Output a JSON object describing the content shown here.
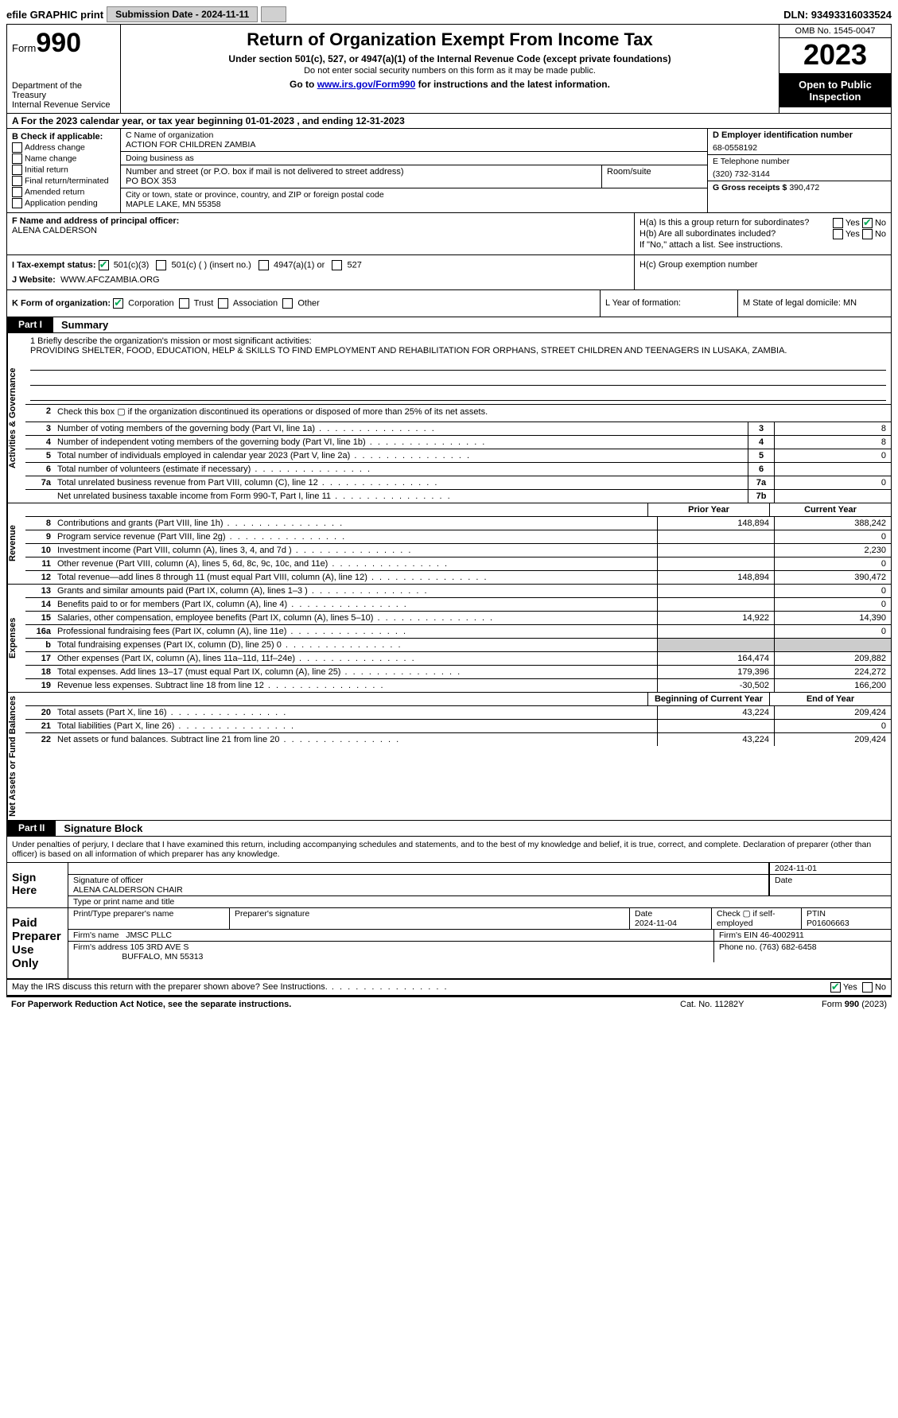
{
  "topbar": {
    "efile": "efile GRAPHIC print",
    "submission": "Submission Date - 2024-11-11",
    "dln": "DLN: 93493316033524"
  },
  "header": {
    "form_label": "Form",
    "form_num": "990",
    "dept": "Department of the Treasury",
    "irs": "Internal Revenue Service",
    "title": "Return of Organization Exempt From Income Tax",
    "sub": "Under section 501(c), 527, or 4947(a)(1) of the Internal Revenue Code (except private foundations)",
    "sub2": "Do not enter social security numbers on this form as it may be made public.",
    "goto_pre": "Go to ",
    "goto_link": "www.irs.gov/Form990",
    "goto_post": " for instructions and the latest information.",
    "omb": "OMB No. 1545-0047",
    "year": "2023",
    "open": "Open to Public Inspection"
  },
  "row_a": "A  For the 2023 calendar year, or tax year beginning 01-01-2023    , and ending 12-31-2023",
  "col_b": {
    "hdr": "B Check if applicable:",
    "items": [
      "Address change",
      "Name change",
      "Initial return",
      "Final return/terminated",
      "Amended return",
      "Application pending"
    ]
  },
  "col_c": {
    "name_lbl": "C Name of organization",
    "name": "ACTION FOR CHILDREN ZAMBIA",
    "dba_lbl": "Doing business as",
    "dba": "",
    "street_lbl": "Number and street (or P.O. box if mail is not delivered to street address)",
    "street": "PO BOX 353",
    "suite_lbl": "Room/suite",
    "city_lbl": "City or town, state or province, country, and ZIP or foreign postal code",
    "city": "MAPLE LAKE, MN  55358"
  },
  "col_d": {
    "ein_lbl": "D Employer identification number",
    "ein": "68-0558192",
    "tel_lbl": "E Telephone number",
    "tel": "(320) 732-3144",
    "gross_lbl": "G Gross receipts $",
    "gross": "390,472"
  },
  "f_label": "F  Name and address of principal officer:",
  "f_name": "ALENA CALDERSON",
  "h": {
    "a": "H(a)  Is this a group return for subordinates?",
    "a_yes": "Yes",
    "a_no": "No",
    "b": "H(b)  Are all subordinates included?",
    "b_note": "If \"No,\" attach a list. See instructions.",
    "c": "H(c)  Group exemption number"
  },
  "i": {
    "label": "I   Tax-exempt status:",
    "o1": "501(c)(3)",
    "o2": "501(c) (  ) (insert no.)",
    "o3": "4947(a)(1) or",
    "o4": "527"
  },
  "j": {
    "label": "J   Website:",
    "val": "WWW.AFCZAMBIA.ORG"
  },
  "k": {
    "label": "K Form of organization:",
    "o1": "Corporation",
    "o2": "Trust",
    "o3": "Association",
    "o4": "Other"
  },
  "l": "L Year of formation:",
  "m": "M State of legal domicile: MN",
  "parts": {
    "p1": "Part I",
    "p1t": "Summary",
    "p2": "Part II",
    "p2t": "Signature Block"
  },
  "vtabs": {
    "ag": "Activities & Governance",
    "rev": "Revenue",
    "exp": "Expenses",
    "na": "Net Assets or Fund Balances"
  },
  "mission": {
    "lbl": "1   Briefly describe the organization's mission or most significant activities:",
    "txt": "PROVIDING SHELTER, FOOD, EDUCATION, HELP & SKILLS TO FIND EMPLOYMENT AND REHABILITATION FOR ORPHANS, STREET CHILDREN AND TEENAGERS IN LUSAKA, ZAMBIA."
  },
  "lines_ag": [
    {
      "n": "2",
      "t": "Check this box ▢ if the organization discontinued its operations or disposed of more than 25% of its net assets."
    },
    {
      "n": "3",
      "t": "Number of voting members of the governing body (Part VI, line 1a)",
      "box": "3",
      "v": "8"
    },
    {
      "n": "4",
      "t": "Number of independent voting members of the governing body (Part VI, line 1b)",
      "box": "4",
      "v": "8"
    },
    {
      "n": "5",
      "t": "Total number of individuals employed in calendar year 2023 (Part V, line 2a)",
      "box": "5",
      "v": "0"
    },
    {
      "n": "6",
      "t": "Total number of volunteers (estimate if necessary)",
      "box": "6",
      "v": ""
    },
    {
      "n": "7a",
      "t": "Total unrelated business revenue from Part VIII, column (C), line 12",
      "box": "7a",
      "v": "0"
    },
    {
      "n": "",
      "t": "Net unrelated business taxable income from Form 990-T, Part I, line 11",
      "box": "7b",
      "v": ""
    }
  ],
  "col_hdrs": {
    "py": "Prior Year",
    "cy": "Current Year",
    "boy": "Beginning of Current Year",
    "eoy": "End of Year"
  },
  "lines_rev": [
    {
      "n": "8",
      "t": "Contributions and grants (Part VIII, line 1h)",
      "py": "148,894",
      "cy": "388,242"
    },
    {
      "n": "9",
      "t": "Program service revenue (Part VIII, line 2g)",
      "py": "",
      "cy": "0"
    },
    {
      "n": "10",
      "t": "Investment income (Part VIII, column (A), lines 3, 4, and 7d )",
      "py": "",
      "cy": "2,230"
    },
    {
      "n": "11",
      "t": "Other revenue (Part VIII, column (A), lines 5, 6d, 8c, 9c, 10c, and 11e)",
      "py": "",
      "cy": "0"
    },
    {
      "n": "12",
      "t": "Total revenue—add lines 8 through 11 (must equal Part VIII, column (A), line 12)",
      "py": "148,894",
      "cy": "390,472"
    }
  ],
  "lines_exp": [
    {
      "n": "13",
      "t": "Grants and similar amounts paid (Part IX, column (A), lines 1–3 )",
      "py": "",
      "cy": "0"
    },
    {
      "n": "14",
      "t": "Benefits paid to or for members (Part IX, column (A), line 4)",
      "py": "",
      "cy": "0"
    },
    {
      "n": "15",
      "t": "Salaries, other compensation, employee benefits (Part IX, column (A), lines 5–10)",
      "py": "14,922",
      "cy": "14,390"
    },
    {
      "n": "16a",
      "t": "Professional fundraising fees (Part IX, column (A), line 11e)",
      "py": "",
      "cy": "0"
    },
    {
      "n": "b",
      "t": "Total fundraising expenses (Part IX, column (D), line 25) 0",
      "py": "SHADE",
      "cy": "SHADE"
    },
    {
      "n": "17",
      "t": "Other expenses (Part IX, column (A), lines 11a–11d, 11f–24e)",
      "py": "164,474",
      "cy": "209,882"
    },
    {
      "n": "18",
      "t": "Total expenses. Add lines 13–17 (must equal Part IX, column (A), line 25)",
      "py": "179,396",
      "cy": "224,272"
    },
    {
      "n": "19",
      "t": "Revenue less expenses. Subtract line 18 from line 12",
      "py": "-30,502",
      "cy": "166,200"
    }
  ],
  "lines_na": [
    {
      "n": "20",
      "t": "Total assets (Part X, line 16)",
      "py": "43,224",
      "cy": "209,424"
    },
    {
      "n": "21",
      "t": "Total liabilities (Part X, line 26)",
      "py": "",
      "cy": "0"
    },
    {
      "n": "22",
      "t": "Net assets or fund balances. Subtract line 21 from line 20",
      "py": "43,224",
      "cy": "209,424"
    }
  ],
  "sig_decl": "Under penalties of perjury, I declare that I have examined this return, including accompanying schedules and statements, and to the best of my knowledge and belief, it is true, correct, and complete. Declaration of preparer (other than officer) is based on all information of which preparer has any knowledge.",
  "sign": {
    "left": "Sign Here",
    "sig_lbl": "Signature of officer",
    "name": "ALENA CALDERSON CHAIR",
    "type_lbl": "Type or print name and title",
    "date": "2024-11-01",
    "date_lbl": "Date"
  },
  "paid": {
    "left": "Paid Preparer Use Only",
    "pn_lbl": "Print/Type preparer's name",
    "ps_lbl": "Preparer's signature",
    "date_lbl": "Date",
    "date": "2024-11-04",
    "check_lbl": "Check ▢ if self-employed",
    "ptin_lbl": "PTIN",
    "ptin": "P01606663",
    "firm_name_lbl": "Firm's name",
    "firm_name": "JMSC PLLC",
    "firm_ein_lbl": "Firm's EIN",
    "firm_ein": "46-4002911",
    "firm_addr_lbl": "Firm's address",
    "firm_addr1": "105 3RD AVE S",
    "firm_addr2": "BUFFALO, MN  55313",
    "phone_lbl": "Phone no.",
    "phone": "(763) 682-6458"
  },
  "may": "May the IRS discuss this return with the preparer shown above? See Instructions.",
  "may_yes": "Yes",
  "may_no": "No",
  "footer": {
    "l": "For Paperwork Reduction Act Notice, see the separate instructions.",
    "m": "Cat. No. 11282Y",
    "r": "Form 990 (2023)"
  }
}
